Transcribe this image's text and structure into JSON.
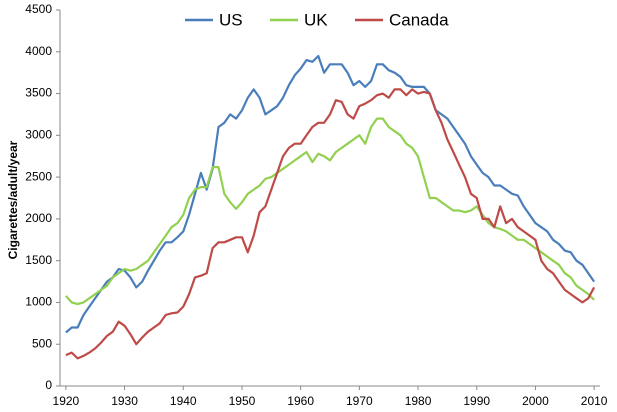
{
  "chart_data": {
    "type": "line",
    "y_label": "Cigarettes/adult/year",
    "x": [
      1920,
      1921,
      1922,
      1923,
      1924,
      1925,
      1926,
      1927,
      1928,
      1929,
      1930,
      1931,
      1932,
      1933,
      1934,
      1935,
      1936,
      1937,
      1938,
      1939,
      1940,
      1941,
      1942,
      1943,
      1944,
      1945,
      1946,
      1947,
      1948,
      1949,
      1950,
      1951,
      1952,
      1953,
      1954,
      1955,
      1956,
      1957,
      1958,
      1959,
      1960,
      1961,
      1962,
      1963,
      1964,
      1965,
      1966,
      1967,
      1968,
      1969,
      1970,
      1971,
      1972,
      1973,
      1974,
      1975,
      1976,
      1977,
      1978,
      1979,
      1980,
      1981,
      1982,
      1983,
      1984,
      1985,
      1986,
      1987,
      1988,
      1989,
      1990,
      1991,
      1992,
      1993,
      1994,
      1995,
      1996,
      1997,
      1998,
      1999,
      2000,
      2001,
      2002,
      2003,
      2004,
      2005,
      2006,
      2007,
      2008,
      2009,
      2010
    ],
    "series": [
      {
        "name": "US",
        "color": "#4a7ebb",
        "values": [
          640,
          700,
          700,
          850,
          950,
          1050,
          1150,
          1250,
          1300,
          1400,
          1380,
          1300,
          1180,
          1250,
          1380,
          1500,
          1620,
          1720,
          1720,
          1780,
          1850,
          2050,
          2300,
          2550,
          2350,
          2600,
          3100,
          3150,
          3250,
          3200,
          3300,
          3450,
          3550,
          3450,
          3250,
          3300,
          3350,
          3450,
          3600,
          3720,
          3800,
          3900,
          3880,
          3950,
          3750,
          3850,
          3850,
          3850,
          3750,
          3600,
          3650,
          3580,
          3650,
          3850,
          3850,
          3780,
          3750,
          3700,
          3600,
          3580,
          3580,
          3580,
          3500,
          3300,
          3250,
          3200,
          3100,
          3000,
          2900,
          2750,
          2650,
          2550,
          2500,
          2400,
          2400,
          2350,
          2300,
          2280,
          2150,
          2050,
          1950,
          1900,
          1850,
          1750,
          1700,
          1620,
          1600,
          1500,
          1450,
          1350,
          1250
        ]
      },
      {
        "name": "UK",
        "color": "#92d050",
        "values": [
          1080,
          1000,
          980,
          1000,
          1050,
          1100,
          1150,
          1200,
          1300,
          1350,
          1400,
          1380,
          1400,
          1450,
          1500,
          1600,
          1700,
          1800,
          1900,
          1950,
          2050,
          2250,
          2350,
          2380,
          2380,
          2620,
          2620,
          2300,
          2200,
          2120,
          2200,
          2300,
          2350,
          2400,
          2480,
          2500,
          2550,
          2600,
          2650,
          2700,
          2750,
          2800,
          2680,
          2780,
          2750,
          2700,
          2800,
          2850,
          2900,
          2950,
          3000,
          2900,
          3100,
          3200,
          3200,
          3100,
          3050,
          3000,
          2900,
          2850,
          2750,
          2500,
          2250,
          2250,
          2200,
          2150,
          2100,
          2100,
          2080,
          2100,
          2150,
          2050,
          1950,
          1900,
          1880,
          1850,
          1800,
          1750,
          1750,
          1700,
          1650,
          1600,
          1550,
          1500,
          1450,
          1350,
          1300,
          1200,
          1150,
          1100,
          1030
        ]
      },
      {
        "name": "Canada",
        "color": "#be4b48",
        "values": [
          370,
          400,
          330,
          360,
          400,
          450,
          520,
          600,
          650,
          770,
          720,
          620,
          500,
          580,
          650,
          700,
          750,
          850,
          870,
          880,
          950,
          1100,
          1300,
          1320,
          1350,
          1650,
          1720,
          1720,
          1750,
          1780,
          1780,
          1600,
          1800,
          2080,
          2150,
          2350,
          2550,
          2750,
          2850,
          2900,
          2900,
          3000,
          3100,
          3150,
          3150,
          3250,
          3420,
          3400,
          3250,
          3200,
          3350,
          3380,
          3420,
          3480,
          3500,
          3450,
          3550,
          3550,
          3480,
          3550,
          3500,
          3520,
          3500,
          3300,
          3150,
          2950,
          2800,
          2650,
          2500,
          2300,
          2250,
          2000,
          2000,
          1900,
          2150,
          1950,
          2000,
          1900,
          1850,
          1800,
          1750,
          1500,
          1400,
          1350,
          1250,
          1150,
          1100,
          1050,
          1000,
          1050,
          1180
        ]
      }
    ],
    "xlim": [
      1919,
      2011
    ],
    "xticks": [
      1920,
      1930,
      1940,
      1950,
      1960,
      1970,
      1980,
      1990,
      2000,
      2010
    ],
    "ylim": [
      0,
      4500
    ],
    "yticks": [
      0,
      500,
      1000,
      1500,
      2000,
      2500,
      3000,
      3500,
      4000,
      4500
    ],
    "grid": false,
    "legend": "top"
  }
}
